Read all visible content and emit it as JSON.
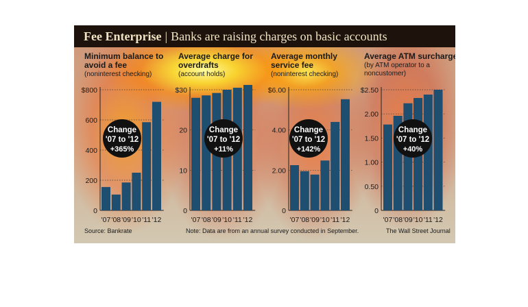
{
  "header": {
    "title": "Fee Enterprise",
    "separator": "|",
    "subtitle": "Banks are raising charges on basic accounts"
  },
  "footer": {
    "source": "Source: Bankrate",
    "note": "Note: Data are from an annual survey conducted in September.",
    "credit": "The Wall Street Journal"
  },
  "colors": {
    "bar": "#1e4e70",
    "title_bg": "#1d120c",
    "badge": "#111111",
    "badge_text": "#ffffff"
  },
  "chart_data": [
    {
      "type": "bar",
      "title_lines": [
        "Minimum balance to",
        "avoid a fee"
      ],
      "subtitle_lines": [
        "(noninterest checking)"
      ],
      "categories": [
        "'07",
        "'08",
        "'09",
        "'10",
        "'11",
        "'12"
      ],
      "values": [
        155,
        105,
        185,
        250,
        585,
        720
      ],
      "ylim": [
        0,
        800
      ],
      "yticks": [
        0,
        200,
        400,
        600,
        800
      ],
      "ytick_labels": [
        "0",
        "200",
        "400",
        "600",
        "$800"
      ],
      "badge": [
        "Change",
        "'07 to '12",
        "+365%"
      ]
    },
    {
      "type": "bar",
      "title_lines": [
        "Average charge for",
        "overdrafts"
      ],
      "subtitle_lines": [
        "(account holds)"
      ],
      "categories": [
        "'07",
        "'08",
        "'09",
        "'10",
        "'11",
        "'12"
      ],
      "values": [
        28,
        28.6,
        29.2,
        30,
        30.5,
        31.2
      ],
      "ylim": [
        0,
        30
      ],
      "yticks": [
        0,
        10,
        20,
        30
      ],
      "ytick_labels": [
        "0",
        "10",
        "20",
        "$30"
      ],
      "badge": [
        "Change",
        "'07 to '12",
        "+11%"
      ]
    },
    {
      "type": "bar",
      "title_lines": [
        "Average monthly",
        "service fee"
      ],
      "subtitle_lines": [
        "(noninterest checking)"
      ],
      "categories": [
        "'07",
        "'08",
        "'09",
        "'10",
        "'11",
        "'12"
      ],
      "values": [
        2.25,
        1.95,
        1.78,
        2.48,
        4.4,
        5.53
      ],
      "ylim": [
        0,
        6
      ],
      "yticks": [
        0,
        2,
        4,
        6
      ],
      "ytick_labels": [
        "0",
        "2.00",
        "4.00",
        "$6.00"
      ],
      "badge": [
        "Change",
        "'07 to '12",
        "+142%"
      ]
    },
    {
      "type": "bar",
      "title_lines": [
        "Average ATM surcharge"
      ],
      "subtitle_lines": [
        "(by ATM operator to a",
        "noncustomer)"
      ],
      "categories": [
        "'07",
        "'08",
        "'09",
        "'10",
        "'11",
        "'12"
      ],
      "values": [
        1.78,
        1.96,
        2.22,
        2.33,
        2.4,
        2.5
      ],
      "ylim": [
        0,
        2.5
      ],
      "yticks": [
        0,
        0.5,
        1,
        1.5,
        2,
        2.5
      ],
      "ytick_labels": [
        "0",
        "0.50",
        "1.00",
        "1.50",
        "2.00",
        "$2.50"
      ],
      "badge": [
        "Change",
        "'07 to '12",
        "+40%"
      ]
    }
  ]
}
